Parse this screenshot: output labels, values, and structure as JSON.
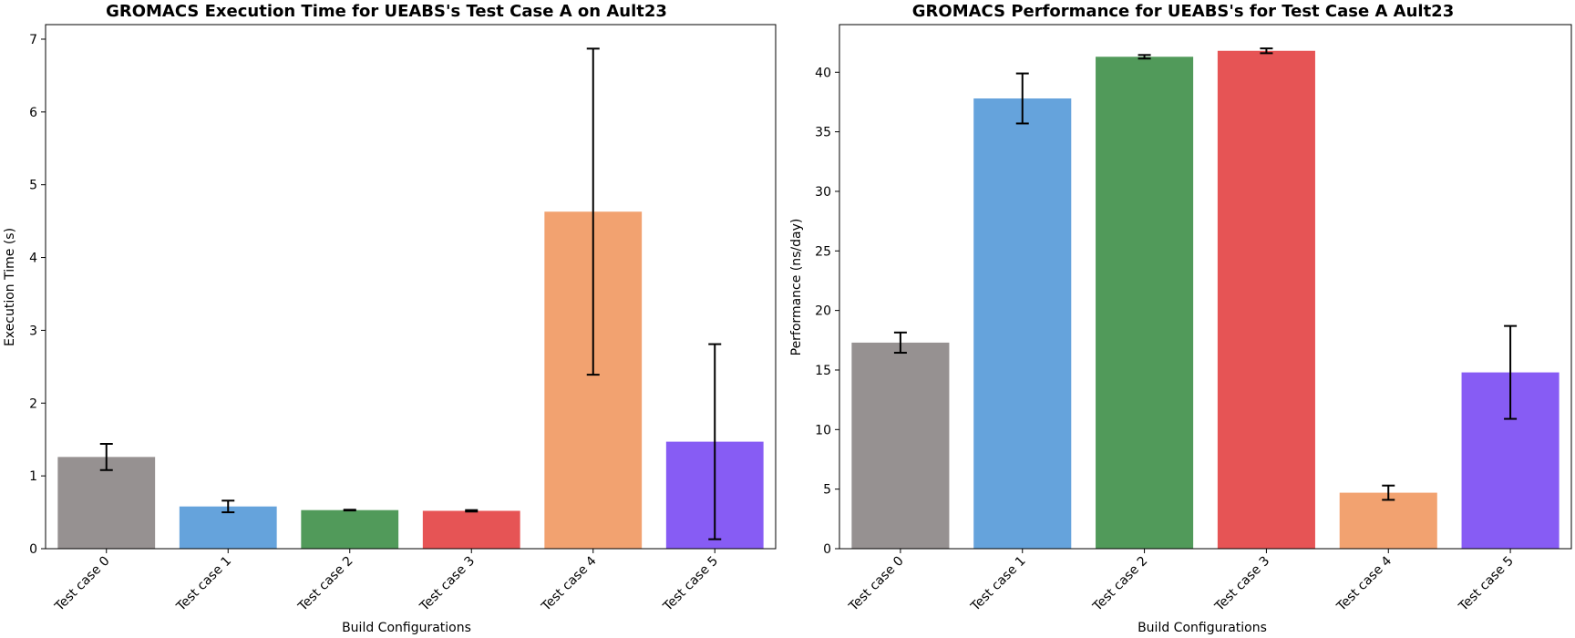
{
  "chart_data": [
    {
      "type": "bar",
      "title": "GROMACS Execution Time for UEABS's Test Case A on Ault23",
      "xlabel": "Build Configurations",
      "ylabel": "Execution Time (s)",
      "categories": [
        "Test case 0",
        "Test case 1",
        "Test case 2",
        "Test case 3",
        "Test case 4",
        "Test case 5"
      ],
      "values": [
        1.26,
        0.58,
        0.53,
        0.52,
        4.63,
        1.47
      ],
      "errors": [
        0.18,
        0.08,
        0.005,
        0.01,
        2.24,
        1.34
      ],
      "colors": [
        "#969191",
        "#65a3dc",
        "#519a5a",
        "#e65455",
        "#f2a270",
        "#875cf4"
      ],
      "ylim": [
        0,
        7.2
      ],
      "yticks": [
        0,
        1,
        2,
        3,
        4,
        5,
        6,
        7
      ],
      "grid": false
    },
    {
      "type": "bar",
      "title": "GROMACS Performance for UEABS's for Test Case A Ault23",
      "xlabel": "Build Configurations",
      "ylabel": "Performance (ns/day)",
      "categories": [
        "Test case 0",
        "Test case 1",
        "Test case 2",
        "Test case 3",
        "Test case 4",
        "Test case 5"
      ],
      "values": [
        17.3,
        37.8,
        41.3,
        41.8,
        4.7,
        14.8
      ],
      "errors": [
        0.85,
        2.1,
        0.15,
        0.2,
        0.6,
        3.9
      ],
      "colors": [
        "#969191",
        "#65a3dc",
        "#519a5a",
        "#e65455",
        "#f2a270",
        "#875cf4"
      ],
      "ylim": [
        0,
        44
      ],
      "yticks": [
        0,
        5,
        10,
        15,
        20,
        25,
        30,
        35,
        40
      ],
      "grid": false
    }
  ]
}
